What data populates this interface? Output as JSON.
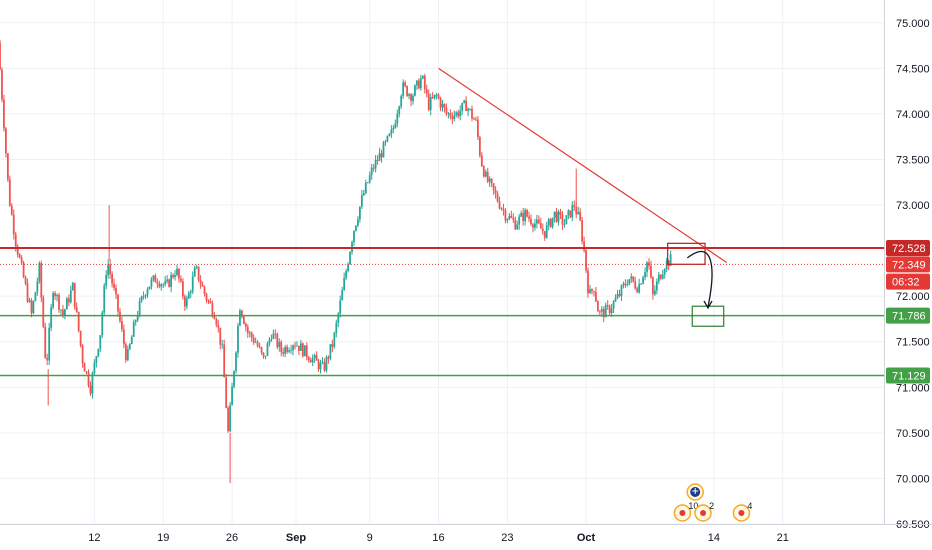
{
  "chart_data": {
    "type": "candlestick",
    "title": "",
    "xlabel": "",
    "ylabel": "",
    "ylim": [
      69.5,
      75.25
    ],
    "y_ticks": [
      "75.000",
      "74.500",
      "74.000",
      "73.500",
      "73.000",
      "72.500",
      "72.000",
      "71.500",
      "71.000",
      "70.500",
      "70.000",
      "69.500"
    ],
    "x_ticks": [
      {
        "label": "12",
        "day": 12,
        "bold": false
      },
      {
        "label": "19",
        "day": 19,
        "bold": false
      },
      {
        "label": "26",
        "day": 26,
        "bold": false
      },
      {
        "label": "Sep",
        "day": 32.5,
        "bold": true
      },
      {
        "label": "9",
        "day": 40,
        "bold": false
      },
      {
        "label": "16",
        "day": 47,
        "bold": false
      },
      {
        "label": "23",
        "day": 54,
        "bold": false
      },
      {
        "label": "Oct",
        "day": 62,
        "bold": true
      },
      {
        "label": "14",
        "day": 75,
        "bold": false
      },
      {
        "label": "21",
        "day": 82,
        "bold": false
      }
    ],
    "xlim_days": [
      2.4,
      92.3
    ],
    "price_path": [
      [
        2.4,
        74.78
      ],
      [
        3.0,
        73.9
      ],
      [
        3.5,
        73.1
      ],
      [
        4.2,
        72.6
      ],
      [
        5.0,
        72.2
      ],
      [
        5.8,
        71.8
      ],
      [
        6.6,
        72.3
      ],
      [
        7.3,
        71.2
      ],
      [
        8.0,
        72.1
      ],
      [
        9.0,
        71.8
      ],
      [
        10.0,
        72.1
      ],
      [
        11.0,
        71.3
      ],
      [
        11.8,
        71.0
      ],
      [
        12.8,
        71.6
      ],
      [
        13.5,
        72.4
      ],
      [
        14.5,
        71.9
      ],
      [
        15.5,
        71.3
      ],
      [
        16.5,
        71.8
      ],
      [
        17.5,
        72.1
      ],
      [
        18.5,
        72.2
      ],
      [
        19.5,
        72.1
      ],
      [
        20.5,
        72.3
      ],
      [
        21.5,
        71.9
      ],
      [
        22.5,
        72.3
      ],
      [
        23.5,
        72.0
      ],
      [
        24.5,
        71.8
      ],
      [
        25.2,
        71.4
      ],
      [
        25.8,
        70.5
      ],
      [
        26.3,
        71.1
      ],
      [
        27.0,
        71.9
      ],
      [
        27.8,
        71.6
      ],
      [
        28.6,
        71.5
      ],
      [
        29.4,
        71.3
      ],
      [
        30.2,
        71.6
      ],
      [
        31.2,
        71.4
      ],
      [
        32.5,
        71.5
      ],
      [
        33.5,
        71.4
      ],
      [
        34.5,
        71.3
      ],
      [
        35.5,
        71.2
      ],
      [
        36.5,
        71.5
      ],
      [
        37.5,
        72.1
      ],
      [
        38.5,
        72.7
      ],
      [
        39.5,
        73.1
      ],
      [
        40.5,
        73.4
      ],
      [
        41.5,
        73.6
      ],
      [
        42.5,
        73.8
      ],
      [
        43.5,
        74.3
      ],
      [
        44.5,
        74.2
      ],
      [
        45.5,
        74.4
      ],
      [
        46.2,
        74.1
      ],
      [
        47.0,
        74.2
      ],
      [
        48.0,
        74.0
      ],
      [
        49.0,
        74.0
      ],
      [
        50.0,
        74.1
      ],
      [
        51.0,
        73.9
      ],
      [
        51.5,
        73.5
      ],
      [
        52.0,
        73.3
      ],
      [
        53.0,
        73.1
      ],
      [
        54.0,
        72.9
      ],
      [
        55.0,
        72.8
      ],
      [
        56.0,
        72.9
      ],
      [
        57.0,
        72.8
      ],
      [
        58.0,
        72.7
      ],
      [
        59.0,
        72.9
      ],
      [
        60.0,
        72.8
      ],
      [
        61.0,
        73.0
      ],
      [
        61.6,
        72.8
      ],
      [
        62.0,
        72.5
      ],
      [
        62.5,
        72.0
      ],
      [
        63.0,
        72.1
      ],
      [
        63.5,
        71.8
      ],
      [
        64.5,
        71.85
      ],
      [
        65.5,
        72.0
      ],
      [
        66.5,
        72.2
      ],
      [
        67.5,
        72.1
      ],
      [
        68.5,
        72.4
      ],
      [
        69.0,
        72.0
      ],
      [
        69.6,
        72.2
      ],
      [
        70.2,
        72.35
      ],
      [
        70.8,
        72.4
      ]
    ],
    "lines": [
      {
        "kind": "horizontal",
        "price": 72.528,
        "color": "#c62828",
        "style": "solid",
        "width": 2
      },
      {
        "kind": "horizontal",
        "price": 72.349,
        "color": "#e53935",
        "style": "dotted",
        "width": 1
      },
      {
        "kind": "horizontal",
        "price": 71.786,
        "color": "#43a047",
        "style": "solid",
        "width": 1.5
      },
      {
        "kind": "horizontal",
        "price": 71.129,
        "color": "#43a047",
        "style": "solid",
        "width": 1.5
      },
      {
        "kind": "trendline",
        "from": [
          47.0,
          74.5
        ],
        "to": [
          76.3,
          72.37
        ],
        "color": "#e53935",
        "width": 1.2
      }
    ],
    "boxes": [
      {
        "x": [
          70.3,
          74.1
        ],
        "y": [
          72.35,
          72.58
        ],
        "color": "#b71c1c"
      },
      {
        "x": [
          72.8,
          76.0
        ],
        "y": [
          71.67,
          71.89
        ],
        "color": "#2e7d32"
      }
    ],
    "price_tags": [
      {
        "label": "72.528",
        "price": 72.528,
        "color": "#c62828"
      },
      {
        "label": "72.349",
        "price": 72.349,
        "color": "#e53935"
      },
      {
        "label": "06:32",
        "price": 72.16,
        "color": "#e53935"
      },
      {
        "label": "71.786",
        "price": 71.786,
        "color": "#43a047"
      },
      {
        "label": "71.129",
        "price": 71.129,
        "color": "#43a047"
      }
    ],
    "events": [
      {
        "kind": "flag",
        "day": 73.1,
        "row": 0,
        "label": ""
      },
      {
        "kind": "dot",
        "day": 71.8,
        "row": 1,
        "label": "10"
      },
      {
        "kind": "dot",
        "day": 73.9,
        "row": 1,
        "label": "2"
      },
      {
        "kind": "dot",
        "day": 77.8,
        "row": 1,
        "label": "4"
      }
    ],
    "grid": true,
    "colors": {
      "up": "#26a69a",
      "down": "#ef5350",
      "grid": "#eef0f4",
      "axis_text": "#131722",
      "border": "#d1d4dc"
    }
  }
}
